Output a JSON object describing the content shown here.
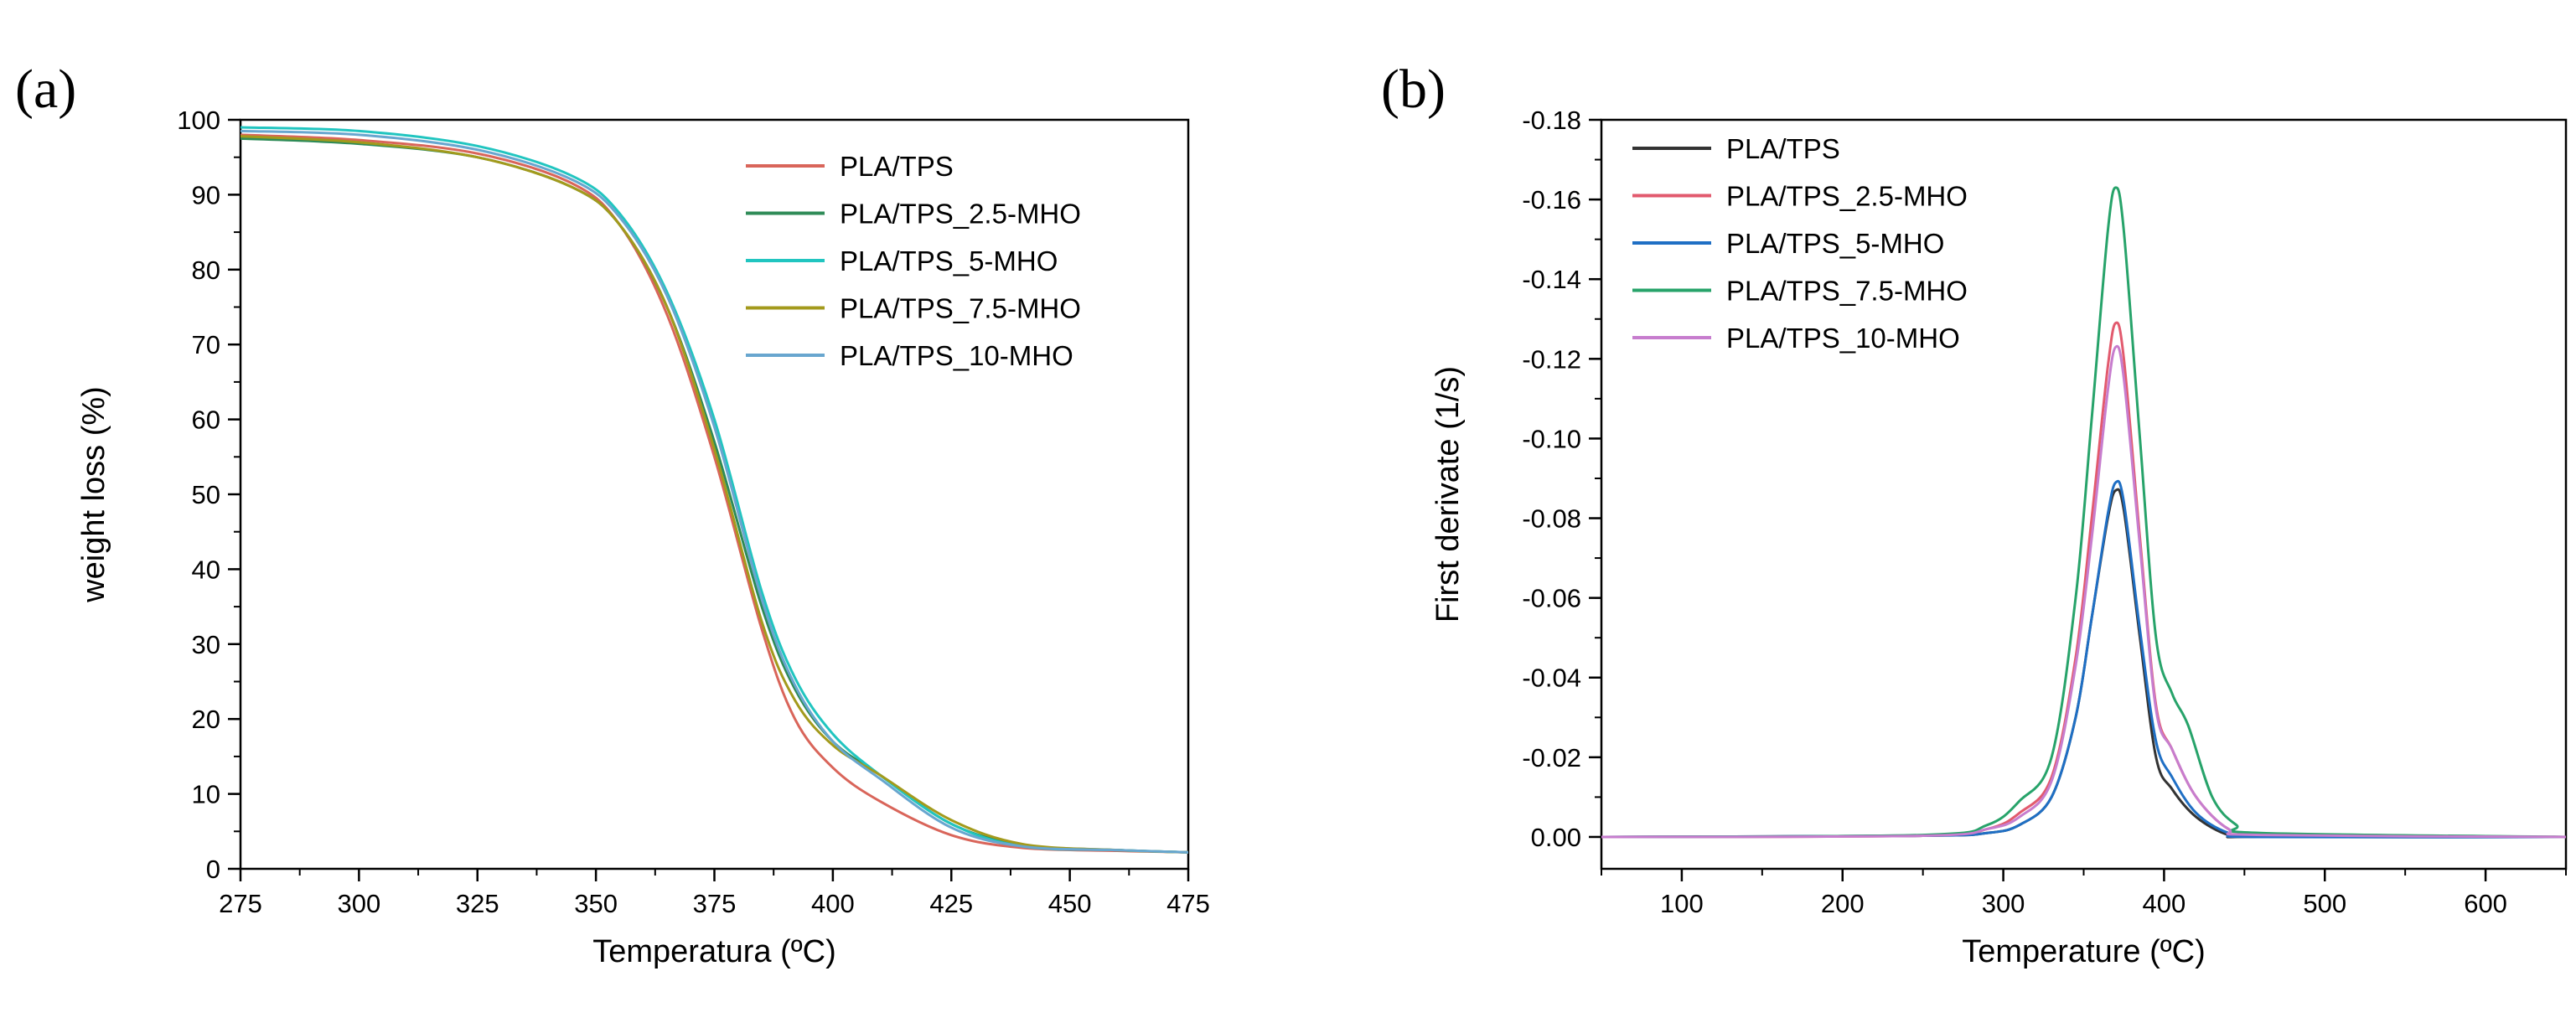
{
  "panel_labels": {
    "a": "(a)",
    "b": "(b)"
  },
  "chart_data": [
    {
      "type": "line",
      "panel": "a",
      "xlabel": "Temperatura (ºC)",
      "ylabel": "weight loss (%)",
      "xlim": [
        275,
        475
      ],
      "ylim": [
        0,
        100
      ],
      "xticks": [
        275,
        300,
        325,
        350,
        375,
        400,
        425,
        450,
        475
      ],
      "xtick_labels": [
        "275",
        "300",
        "325",
        "350",
        "375",
        "400",
        "425",
        "450",
        "475"
      ],
      "yticks": [
        0,
        10,
        20,
        30,
        40,
        50,
        60,
        70,
        80,
        90,
        100
      ],
      "ytick_labels": [
        "0",
        "10",
        "20",
        "30",
        "40",
        "50",
        "60",
        "70",
        "80",
        "90",
        "100"
      ],
      "grid": false,
      "legend_position": "top-right",
      "series": [
        {
          "name": "PLA/TPS",
          "color": "#d9655a",
          "points": [
            [
              275,
              98
            ],
            [
              300,
              97.3
            ],
            [
              325,
              95.5
            ],
            [
              345,
              91.5
            ],
            [
              355,
              86
            ],
            [
              365,
              74
            ],
            [
              375,
              55
            ],
            [
              385,
              32
            ],
            [
              392,
              20
            ],
            [
              400,
              13.5
            ],
            [
              410,
              9
            ],
            [
              425,
              4.5
            ],
            [
              440,
              2.8
            ],
            [
              460,
              2.4
            ],
            [
              475,
              2.2
            ]
          ]
        },
        {
          "name": "PLA/TPS_2.5-MHO",
          "color": "#2e8b57",
          "points": [
            [
              275,
              97.5
            ],
            [
              300,
              96.8
            ],
            [
              325,
              95
            ],
            [
              345,
              91
            ],
            [
              355,
              86
            ],
            [
              365,
              75
            ],
            [
              375,
              57
            ],
            [
              385,
              35
            ],
            [
              392,
              24
            ],
            [
              400,
              17
            ],
            [
              410,
              12.5
            ],
            [
              425,
              6
            ],
            [
              440,
              3.2
            ],
            [
              460,
              2.5
            ],
            [
              475,
              2.2
            ]
          ]
        },
        {
          "name": "PLA/TPS_5-MHO",
          "color": "#21c5c0",
          "points": [
            [
              275,
              99
            ],
            [
              300,
              98.5
            ],
            [
              325,
              96.5
            ],
            [
              345,
              92.5
            ],
            [
              355,
              87.5
            ],
            [
              365,
              77
            ],
            [
              375,
              60
            ],
            [
              385,
              37
            ],
            [
              392,
              25.5
            ],
            [
              400,
              18
            ],
            [
              410,
              12.5
            ],
            [
              425,
              6
            ],
            [
              440,
              3
            ],
            [
              460,
              2.5
            ],
            [
              475,
              2.2
            ]
          ]
        },
        {
          "name": "PLA/TPS_7.5-MHO",
          "color": "#a39a1c",
          "points": [
            [
              275,
              97.8
            ],
            [
              300,
              97
            ],
            [
              325,
              95
            ],
            [
              345,
              91
            ],
            [
              355,
              86
            ],
            [
              365,
              75
            ],
            [
              375,
              56
            ],
            [
              385,
              33
            ],
            [
              392,
              22.5
            ],
            [
              400,
              16.5
            ],
            [
              410,
              12.5
            ],
            [
              425,
              6.5
            ],
            [
              440,
              3.3
            ],
            [
              460,
              2.5
            ],
            [
              475,
              2.2
            ]
          ]
        },
        {
          "name": "PLA/TPS_10-MHO",
          "color": "#68a6cf",
          "points": [
            [
              275,
              98.5
            ],
            [
              300,
              98
            ],
            [
              325,
              96
            ],
            [
              345,
              92
            ],
            [
              355,
              87
            ],
            [
              365,
              76.5
            ],
            [
              375,
              59
            ],
            [
              385,
              36
            ],
            [
              392,
              24.5
            ],
            [
              400,
              17
            ],
            [
              410,
              12
            ],
            [
              425,
              5.5
            ],
            [
              440,
              3
            ],
            [
              460,
              2.5
            ],
            [
              475,
              2.2
            ]
          ]
        }
      ]
    },
    {
      "type": "line",
      "panel": "b",
      "xlabel": "Temperature (ºC)",
      "ylabel": "First derivate (1/s)",
      "xlim": [
        50,
        650
      ],
      "ylim": [
        0.008,
        -0.18
      ],
      "xticks": [
        100,
        200,
        300,
        400,
        500,
        600
      ],
      "xtick_labels": [
        "100",
        "200",
        "300",
        "400",
        "500",
        "600"
      ],
      "yticks": [
        0,
        -0.02,
        -0.04,
        -0.06,
        -0.08,
        -0.1,
        -0.12,
        -0.14,
        -0.16,
        -0.18
      ],
      "ytick_labels": [
        "0.00",
        "-0.02",
        "-0.04",
        "-0.06",
        "-0.08",
        "-0.10",
        "-0.12",
        "-0.14",
        "-0.16",
        "-0.18"
      ],
      "grid": false,
      "legend_position": "top-left",
      "series": [
        {
          "name": "PLA/TPS",
          "color": "#333333",
          "points": [
            [
              50,
              0
            ],
            [
              250,
              -0.0003
            ],
            [
              290,
              -0.001
            ],
            [
              310,
              -0.003
            ],
            [
              330,
              -0.01
            ],
            [
              345,
              -0.03
            ],
            [
              355,
              -0.055
            ],
            [
              365,
              -0.08
            ],
            [
              370,
              -0.087
            ],
            [
              375,
              -0.082
            ],
            [
              385,
              -0.05
            ],
            [
              395,
              -0.02
            ],
            [
              405,
              -0.012
            ],
            [
              420,
              -0.005
            ],
            [
              440,
              -0.0005
            ],
            [
              460,
              0
            ],
            [
              650,
              0
            ]
          ]
        },
        {
          "name": "PLA/TPS_2.5-MHO",
          "color": "#e25a6e",
          "points": [
            [
              50,
              0
            ],
            [
              250,
              -0.0003
            ],
            [
              290,
              -0.002
            ],
            [
              310,
              -0.006
            ],
            [
              330,
              -0.015
            ],
            [
              345,
              -0.045
            ],
            [
              355,
              -0.08
            ],
            [
              365,
              -0.118
            ],
            [
              370,
              -0.129
            ],
            [
              375,
              -0.12
            ],
            [
              385,
              -0.075
            ],
            [
              395,
              -0.033
            ],
            [
              405,
              -0.022
            ],
            [
              420,
              -0.01
            ],
            [
              440,
              -0.002
            ],
            [
              460,
              -0.0005
            ],
            [
              650,
              0
            ]
          ]
        },
        {
          "name": "PLA/TPS_5-MHO",
          "color": "#1f6fc4",
          "points": [
            [
              50,
              0
            ],
            [
              250,
              -0.0003
            ],
            [
              290,
              -0.001
            ],
            [
              310,
              -0.003
            ],
            [
              330,
              -0.01
            ],
            [
              345,
              -0.03
            ],
            [
              355,
              -0.055
            ],
            [
              365,
              -0.081
            ],
            [
              370,
              -0.089
            ],
            [
              375,
              -0.084
            ],
            [
              385,
              -0.052
            ],
            [
              395,
              -0.024
            ],
            [
              405,
              -0.015
            ],
            [
              420,
              -0.006
            ],
            [
              440,
              -0.001
            ],
            [
              460,
              0
            ],
            [
              650,
              0
            ]
          ]
        },
        {
          "name": "PLA/TPS_7.5-MHO",
          "color": "#27a36a",
          "points": [
            [
              50,
              0
            ],
            [
              250,
              -0.0005
            ],
            [
              290,
              -0.003
            ],
            [
              310,
              -0.009
            ],
            [
              330,
              -0.02
            ],
            [
              345,
              -0.06
            ],
            [
              355,
              -0.105
            ],
            [
              365,
              -0.152
            ],
            [
              370,
              -0.163
            ],
            [
              375,
              -0.152
            ],
            [
              385,
              -0.1
            ],
            [
              395,
              -0.05
            ],
            [
              405,
              -0.036
            ],
            [
              415,
              -0.028
            ],
            [
              430,
              -0.01
            ],
            [
              445,
              -0.003
            ],
            [
              460,
              -0.001
            ],
            [
              650,
              0
            ]
          ]
        },
        {
          "name": "PLA/TPS_10-MHO",
          "color": "#c77dce",
          "points": [
            [
              50,
              0
            ],
            [
              250,
              -0.0003
            ],
            [
              290,
              -0.002
            ],
            [
              310,
              -0.005
            ],
            [
              330,
              -0.014
            ],
            [
              345,
              -0.043
            ],
            [
              355,
              -0.075
            ],
            [
              365,
              -0.112
            ],
            [
              370,
              -0.123
            ],
            [
              375,
              -0.115
            ],
            [
              385,
              -0.073
            ],
            [
              395,
              -0.032
            ],
            [
              405,
              -0.022
            ],
            [
              420,
              -0.01
            ],
            [
              440,
              -0.002
            ],
            [
              460,
              -0.0005
            ],
            [
              650,
              0
            ]
          ]
        }
      ]
    }
  ]
}
